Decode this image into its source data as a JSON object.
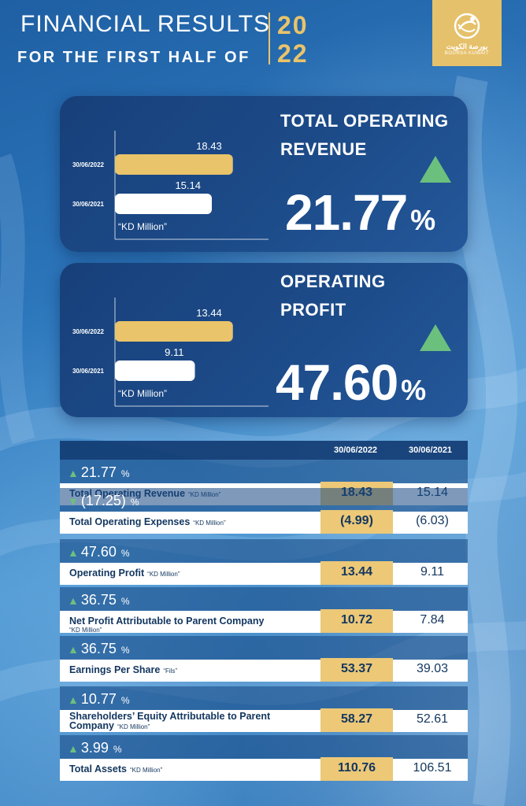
{
  "header": {
    "title": "FINANCIAL RESULTS",
    "subtitle": "FOR THE FIRST HALF OF",
    "year_top": "20",
    "year_bottom": "22"
  },
  "logo": {
    "icon": "boursa-kuwait-logo-icon",
    "arabic": "بورصة الكويت",
    "english": "BOURSA KUWAIT"
  },
  "colors": {
    "gold": "#e9c46a",
    "up_green": "#6cc07e",
    "navy": "#17407a"
  },
  "kpis": [
    {
      "title_line1": "TOTAL OPERATING",
      "title_line2": "REVENUE",
      "change": "21.77",
      "unit": "%",
      "direction": "up"
    },
    {
      "title_line1": "OPERATING",
      "title_line2": "PROFIT",
      "change": "47.60",
      "unit": "%",
      "direction": "up"
    }
  ],
  "table": {
    "col_2022": "30/06/2022",
    "col_2021": "30/06/2021",
    "rows": [
      {
        "change": "21.77",
        "pct": "%",
        "direction": "up",
        "label": "Total Operating Revenue",
        "unit": "“KD Million”",
        "v2022": "18.43",
        "v2021": "15.14"
      },
      {
        "change": "(17.25)",
        "pct": "%",
        "direction": "down",
        "label": "Total Operating Expenses",
        "unit": "“KD Million”",
        "v2022": "(4.99)",
        "v2021": "(6.03)"
      },
      {
        "change": "47.60",
        "pct": "%",
        "direction": "up",
        "label": "Operating Profit",
        "unit": "“KD Million”",
        "v2022": "13.44",
        "v2021": "9.11"
      },
      {
        "change": "36.75",
        "pct": "%",
        "direction": "up",
        "label": "Net Profit Attributable to Parent Company",
        "unit": "“KD Million”",
        "v2022": "10.72",
        "v2021": "7.84"
      },
      {
        "change": "36.75",
        "pct": "%",
        "direction": "up",
        "label": "Earnings Per Share",
        "unit": "“Fils”",
        "v2022": "53.37",
        "v2021": "39.03"
      },
      {
        "change": "10.77",
        "pct": "%",
        "direction": "up",
        "label": "Shareholders’ Equity Attributable to Parent",
        "label2": "Company",
        "unit": "“KD Million”",
        "v2022": "58.27",
        "v2021": "52.61"
      },
      {
        "change": "3.99",
        "pct": "%",
        "direction": "up",
        "label": "Total Assets",
        "unit": "“KD Million”",
        "v2022": "110.76",
        "v2021": "106.51"
      }
    ]
  },
  "chart_data": [
    {
      "type": "bar",
      "orientation": "horizontal",
      "categories": [
        "30/06/2022",
        "30/06/2021"
      ],
      "values": [
        18.43,
        15.14
      ],
      "xlabel": "“KD Million”",
      "xlim": [
        0,
        24
      ]
    },
    {
      "type": "bar",
      "orientation": "horizontal",
      "categories": [
        "30/06/2022",
        "30/06/2021"
      ],
      "values": [
        13.44,
        9.11
      ],
      "xlabel": "“KD Million”",
      "xlim": [
        0,
        17.5
      ]
    }
  ]
}
